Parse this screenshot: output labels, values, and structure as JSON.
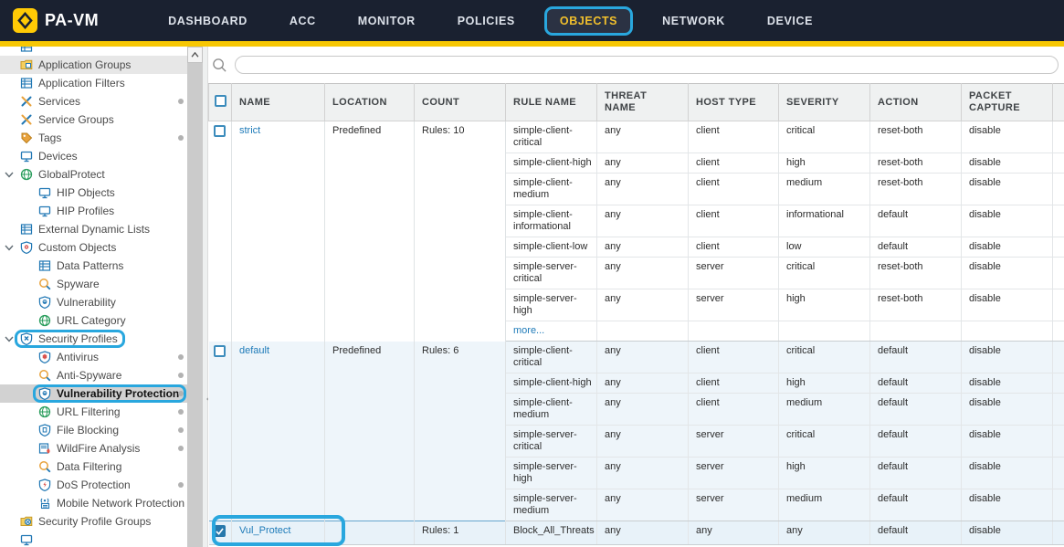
{
  "colors": {
    "header-bg": "#1a2130",
    "accent-yellow": "#f7c703",
    "brand-yellow": "#ffca05",
    "nav-active": "#f2c02c",
    "callout": "#29a7de",
    "link-blue": "#1d7ab8"
  },
  "header": {
    "brand": "PA-VM",
    "nav": [
      {
        "label": "DASHBOARD"
      },
      {
        "label": "ACC"
      },
      {
        "label": "MONITOR"
      },
      {
        "label": "POLICIES"
      },
      {
        "label": "OBJECTS",
        "active": true,
        "annotated": true
      },
      {
        "label": "NETWORK"
      },
      {
        "label": "DEVICE"
      }
    ]
  },
  "sidebar": {
    "items": [
      {
        "label": "",
        "icon": "table",
        "level": 0,
        "partial": "top"
      },
      {
        "label": "Application Groups",
        "icon": "folder",
        "level": 0,
        "highlight": "soft"
      },
      {
        "label": "Application Filters",
        "icon": "table",
        "level": 0
      },
      {
        "label": "Services",
        "icon": "wrench",
        "level": 0,
        "dot": true
      },
      {
        "label": "Service Groups",
        "icon": "wrench",
        "level": 0
      },
      {
        "label": "Tags",
        "icon": "tag",
        "level": 0,
        "dot": true
      },
      {
        "label": "Devices",
        "icon": "monitor",
        "level": 0
      },
      {
        "label": "GlobalProtect",
        "icon": "globe",
        "level": 0,
        "expandable": true
      },
      {
        "label": "HIP Objects",
        "icon": "monitor",
        "level": 1
      },
      {
        "label": "HIP Profiles",
        "icon": "monitor",
        "level": 1
      },
      {
        "label": "External Dynamic Lists",
        "icon": "table",
        "level": 0
      },
      {
        "label": "Custom Objects",
        "icon": "shield-gear",
        "level": 0,
        "expandable": true
      },
      {
        "label": "Data Patterns",
        "icon": "table",
        "level": 1
      },
      {
        "label": "Spyware",
        "icon": "magnifier",
        "level": 1
      },
      {
        "label": "Vulnerability",
        "icon": "shield-mask",
        "level": 1
      },
      {
        "label": "URL Category",
        "icon": "globe",
        "level": 1
      },
      {
        "label": "Security Profiles",
        "icon": "shield-x",
        "level": 0,
        "expandable": true,
        "annotated": true
      },
      {
        "label": "Antivirus",
        "icon": "shield-bug",
        "level": 1,
        "dot": true
      },
      {
        "label": "Anti-Spyware",
        "icon": "magnifier",
        "level": 1,
        "dot": true
      },
      {
        "label": "Vulnerability Protection",
        "icon": "shield-mask",
        "level": 1,
        "dot": true,
        "selected": true,
        "annotated": true
      },
      {
        "label": "URL Filtering",
        "icon": "globe",
        "level": 1,
        "dot": true
      },
      {
        "label": "File Blocking",
        "icon": "shield-file",
        "level": 1,
        "dot": true
      },
      {
        "label": "WildFire Analysis",
        "icon": "doc-flame",
        "level": 1,
        "dot": true
      },
      {
        "label": "Data Filtering",
        "icon": "magnifier",
        "level": 1
      },
      {
        "label": "DoS Protection",
        "icon": "shield-bolt",
        "level": 1,
        "dot": true
      },
      {
        "label": "Mobile Network Protection",
        "icon": "antenna",
        "level": 1
      },
      {
        "label": "Security Profile Groups",
        "icon": "folder-shield",
        "level": 0
      },
      {
        "label": "",
        "icon": "monitor",
        "level": 0,
        "partial": "bottom"
      }
    ]
  },
  "search": {
    "placeholder": ""
  },
  "table": {
    "columns": [
      "NAME",
      "LOCATION",
      "COUNT",
      "RULE NAME",
      "THREAT NAME",
      "HOST TYPE",
      "SEVERITY",
      "ACTION",
      "PACKET CAPTURE"
    ],
    "groups": [
      {
        "name": "strict",
        "location": "Predefined",
        "count": "Rules: 10",
        "more": "more...",
        "rules": [
          {
            "rule": "simple-client-critical",
            "threat": "any",
            "host": "client",
            "severity": "critical",
            "action": "reset-both",
            "capture": "disable"
          },
          {
            "rule": "simple-client-high",
            "threat": "any",
            "host": "client",
            "severity": "high",
            "action": "reset-both",
            "capture": "disable"
          },
          {
            "rule": "simple-client-medium",
            "threat": "any",
            "host": "client",
            "severity": "medium",
            "action": "reset-both",
            "capture": "disable"
          },
          {
            "rule": "simple-client-informational",
            "threat": "any",
            "host": "client",
            "severity": "informational",
            "action": "default",
            "capture": "disable"
          },
          {
            "rule": "simple-client-low",
            "threat": "any",
            "host": "client",
            "severity": "low",
            "action": "default",
            "capture": "disable"
          },
          {
            "rule": "simple-server-critical",
            "threat": "any",
            "host": "server",
            "severity": "critical",
            "action": "reset-both",
            "capture": "disable"
          },
          {
            "rule": "simple-server-high",
            "threat": "any",
            "host": "server",
            "severity": "high",
            "action": "reset-both",
            "capture": "disable"
          }
        ]
      },
      {
        "name": "default",
        "location": "Predefined",
        "count": "Rules: 6",
        "tint": true,
        "rules": [
          {
            "rule": "simple-client-critical",
            "threat": "any",
            "host": "client",
            "severity": "critical",
            "action": "default",
            "capture": "disable"
          },
          {
            "rule": "simple-client-high",
            "threat": "any",
            "host": "client",
            "severity": "high",
            "action": "default",
            "capture": "disable"
          },
          {
            "rule": "simple-client-medium",
            "threat": "any",
            "host": "client",
            "severity": "medium",
            "action": "default",
            "capture": "disable"
          },
          {
            "rule": "simple-server-critical",
            "threat": "any",
            "host": "server",
            "severity": "critical",
            "action": "default",
            "capture": "disable"
          },
          {
            "rule": "simple-server-high",
            "threat": "any",
            "host": "server",
            "severity": "high",
            "action": "default",
            "capture": "disable"
          },
          {
            "rule": "simple-server-medium",
            "threat": "any",
            "host": "server",
            "severity": "medium",
            "action": "default",
            "capture": "disable"
          }
        ]
      },
      {
        "name": "Vul_Protect",
        "location": "",
        "count": "Rules: 1",
        "checked": true,
        "selected": true,
        "annotated": true,
        "rules": [
          {
            "rule": "Block_All_Threats",
            "threat": "any",
            "host": "any",
            "severity": "any",
            "action": "default",
            "capture": "disable"
          }
        ]
      }
    ]
  }
}
